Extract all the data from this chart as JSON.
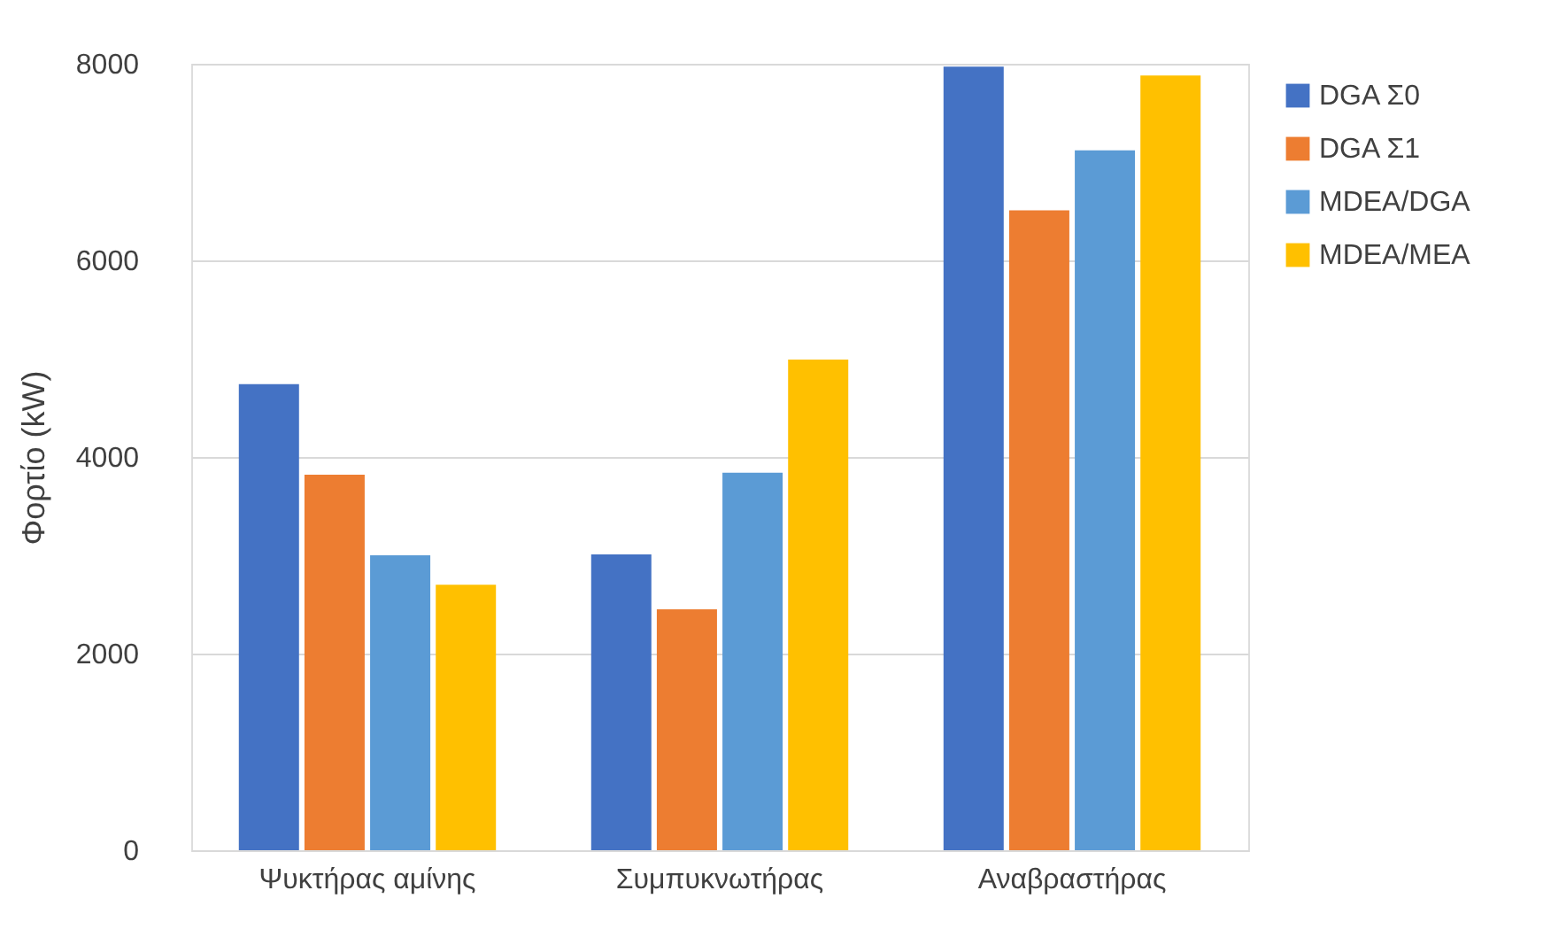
{
  "chart_data": {
    "type": "bar",
    "ylabel": "Φορτίο (kW)",
    "categories": [
      "Ψυκτήρας αμίνης",
      "Συμπυκνωτήρας",
      "Αναβραστήρας"
    ],
    "series": [
      {
        "name": "DGA Σ0",
        "color": "#4472c4",
        "values": [
          4740,
          3010,
          7970
        ]
      },
      {
        "name": "DGA Σ1",
        "color": "#ed7d31",
        "values": [
          3820,
          2450,
          6510
        ]
      },
      {
        "name": "MDEA/DGA",
        "color": "#5b9bd5",
        "values": [
          3000,
          3840,
          7120
        ]
      },
      {
        "name": "MDEA/MEA",
        "color": "#ffc000",
        "values": [
          2700,
          4990,
          7880
        ]
      }
    ],
    "ylim": [
      0,
      8000
    ],
    "yticks": [
      0,
      2000,
      4000,
      6000,
      8000
    ],
    "grid": "y",
    "legend": "right"
  }
}
